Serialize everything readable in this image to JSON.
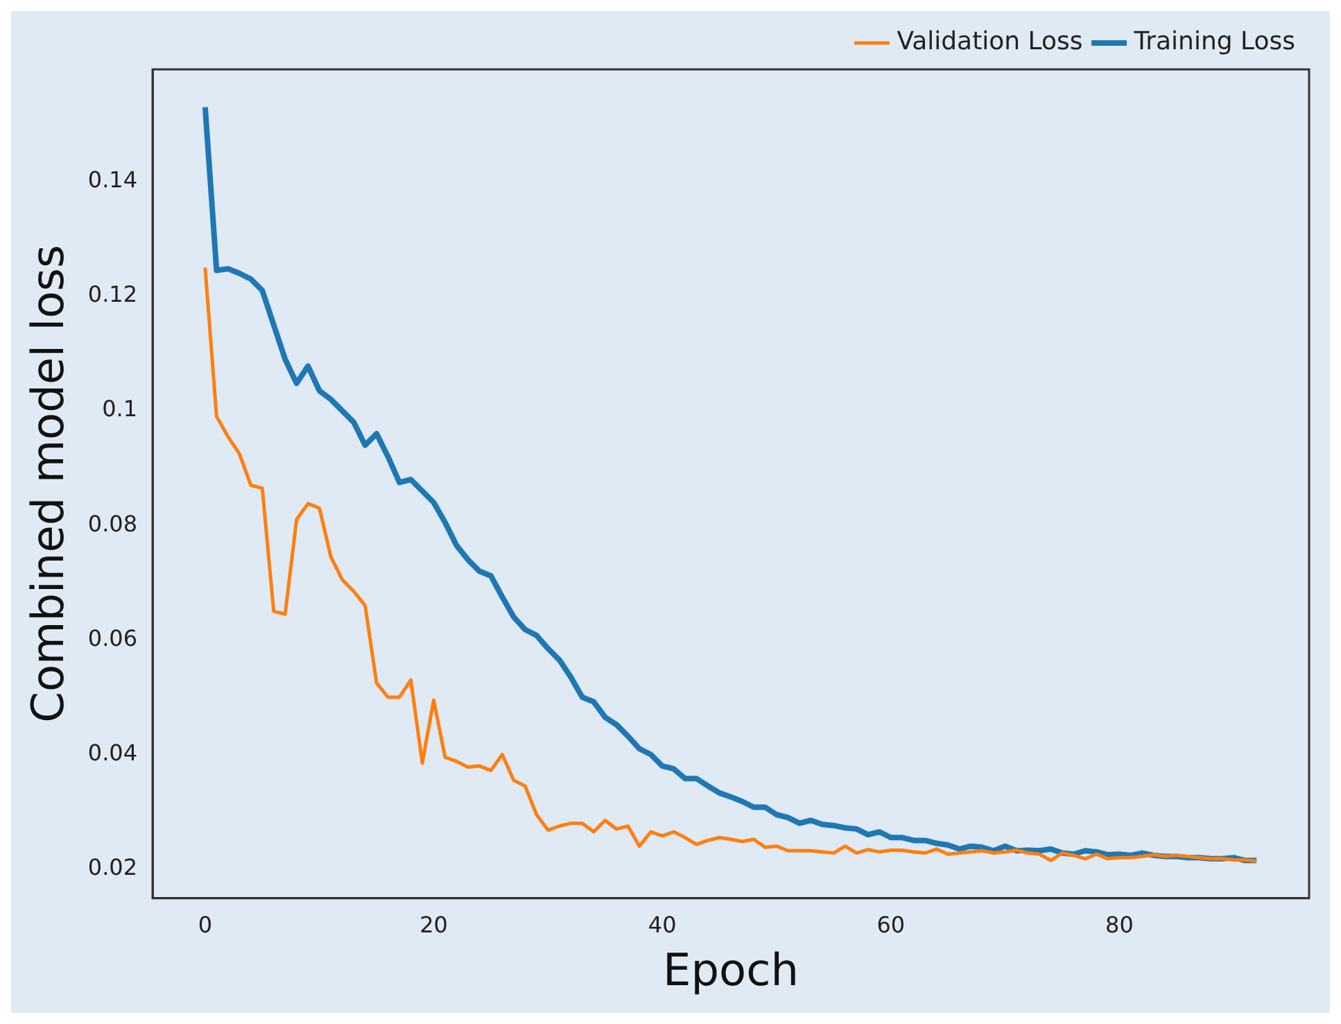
{
  "chart_data": {
    "type": "line",
    "xlabel": "Epoch",
    "ylabel": "Combined model loss",
    "x": [
      0,
      1,
      2,
      3,
      4,
      5,
      6,
      7,
      8,
      9,
      10,
      11,
      12,
      13,
      14,
      15,
      16,
      17,
      18,
      19,
      20,
      21,
      22,
      23,
      24,
      25,
      26,
      27,
      28,
      29,
      30,
      31,
      32,
      33,
      34,
      35,
      36,
      37,
      38,
      39,
      40,
      41,
      42,
      43,
      44,
      45,
      46,
      47,
      48,
      49,
      50,
      51,
      52,
      53,
      54,
      55,
      56,
      57,
      58,
      59,
      60,
      61,
      62,
      63,
      64,
      65,
      66,
      67,
      68,
      69,
      70,
      71,
      72,
      73,
      74,
      75,
      76,
      77,
      78,
      79,
      80,
      81,
      82,
      83,
      84,
      85,
      86,
      87,
      88,
      89,
      90,
      91,
      92
    ],
    "series": [
      {
        "name": "Training Loss",
        "color": "#1f77b4",
        "values": [
          0.153,
          0.1245,
          0.1248,
          0.124,
          0.123,
          0.121,
          0.115,
          0.109,
          0.1048,
          0.1078,
          0.1035,
          0.102,
          0.1,
          0.098,
          0.094,
          0.096,
          0.092,
          0.0875,
          0.088,
          0.086,
          0.084,
          0.0805,
          0.0765,
          0.074,
          0.072,
          0.0712,
          0.0675,
          0.064,
          0.0618,
          0.0608,
          0.0585,
          0.0565,
          0.0535,
          0.05,
          0.0492,
          0.0465,
          0.0452,
          0.0432,
          0.041,
          0.04,
          0.038,
          0.0375,
          0.0358,
          0.0358,
          0.0345,
          0.0333,
          0.0326,
          0.0318,
          0.0308,
          0.0308,
          0.0295,
          0.029,
          0.028,
          0.0285,
          0.0278,
          0.0276,
          0.0272,
          0.027,
          0.026,
          0.0265,
          0.0255,
          0.0255,
          0.025,
          0.025,
          0.0245,
          0.0242,
          0.0235,
          0.024,
          0.0238,
          0.0232,
          0.024,
          0.0232,
          0.0233,
          0.0232,
          0.0235,
          0.0228,
          0.0226,
          0.0232,
          0.023,
          0.0225,
          0.0226,
          0.0224,
          0.0228,
          0.0224,
          0.0222,
          0.0222,
          0.022,
          0.022,
          0.0218,
          0.0218,
          0.022,
          0.0215,
          0.0215
        ]
      },
      {
        "name": "Validation Loss",
        "color": "#ff7f0e",
        "values": [
          0.125,
          0.099,
          0.0955,
          0.0925,
          0.087,
          0.0865,
          0.065,
          0.0645,
          0.081,
          0.0838,
          0.083,
          0.0745,
          0.0705,
          0.0685,
          0.066,
          0.0525,
          0.05,
          0.05,
          0.053,
          0.0385,
          0.0495,
          0.0395,
          0.0388,
          0.0378,
          0.038,
          0.0372,
          0.04,
          0.0355,
          0.0345,
          0.0295,
          0.0268,
          0.0275,
          0.028,
          0.028,
          0.0265,
          0.0285,
          0.027,
          0.0275,
          0.024,
          0.0265,
          0.0258,
          0.0265,
          0.0255,
          0.0243,
          0.025,
          0.0255,
          0.0252,
          0.0248,
          0.0252,
          0.0238,
          0.024,
          0.0232,
          0.0232,
          0.0232,
          0.023,
          0.0228,
          0.024,
          0.0228,
          0.0234,
          0.023,
          0.0233,
          0.0233,
          0.023,
          0.0228,
          0.0235,
          0.0226,
          0.0228,
          0.023,
          0.0232,
          0.0228,
          0.023,
          0.0233,
          0.0228,
          0.0226,
          0.0215,
          0.0228,
          0.0224,
          0.0218,
          0.0226,
          0.0218,
          0.022,
          0.022,
          0.0222,
          0.0225,
          0.0222,
          0.0224,
          0.0222,
          0.022,
          0.0218,
          0.0218,
          0.0216,
          0.0216,
          0.0214
        ]
      }
    ],
    "xlim": [
      -4.6,
      96.6
    ],
    "xticks": [
      0,
      20,
      40,
      60,
      80
    ],
    "ylim": [
      0.0149,
      0.1596
    ],
    "yticks": [
      0.02,
      0.04,
      0.06,
      0.08,
      0.1,
      0.12,
      0.14
    ],
    "grid": false,
    "legend": "top right",
    "marker": "none",
    "line_style": "solid"
  }
}
